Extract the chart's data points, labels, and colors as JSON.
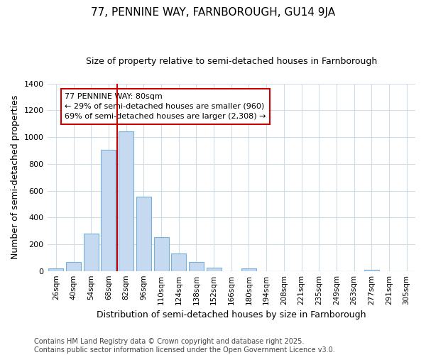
{
  "title": "77, PENNINE WAY, FARNBOROUGH, GU14 9JA",
  "subtitle": "Size of property relative to semi-detached houses in Farnborough",
  "xlabel": "Distribution of semi-detached houses by size in Farnborough",
  "ylabel": "Number of semi-detached properties",
  "categories": [
    "26sqm",
    "40sqm",
    "54sqm",
    "68sqm",
    "82sqm",
    "96sqm",
    "110sqm",
    "124sqm",
    "138sqm",
    "152sqm",
    "166sqm",
    "180sqm",
    "194sqm",
    "208sqm",
    "221sqm",
    "235sqm",
    "249sqm",
    "263sqm",
    "277sqm",
    "291sqm",
    "305sqm"
  ],
  "values": [
    20,
    65,
    280,
    905,
    1045,
    555,
    255,
    133,
    65,
    25,
    0,
    22,
    0,
    0,
    0,
    0,
    0,
    0,
    10,
    0,
    0
  ],
  "bar_color": "#c5d9f0",
  "bar_edge_color": "#7ab0d8",
  "vline_color": "#cc0000",
  "vline_x_index": 4,
  "annotation_text": "77 PENNINE WAY: 80sqm\n← 29% of semi-detached houses are smaller (960)\n69% of semi-detached houses are larger (2,308) →",
  "ylim": [
    0,
    1400
  ],
  "yticks": [
    0,
    200,
    400,
    600,
    800,
    1000,
    1200,
    1400
  ],
  "bg_color": "#ffffff",
  "grid_color": "#d0dce8",
  "footer": "Contains HM Land Registry data © Crown copyright and database right 2025.\nContains public sector information licensed under the Open Government Licence v3.0.",
  "title_fontsize": 11,
  "subtitle_fontsize": 9,
  "axis_label_fontsize": 9,
  "tick_fontsize": 7.5,
  "footer_fontsize": 7,
  "annot_fontsize": 8
}
